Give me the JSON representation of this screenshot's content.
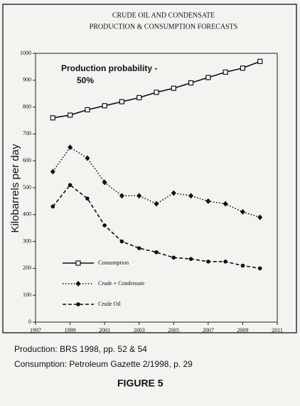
{
  "chart_data": {
    "type": "line",
    "title": [
      "CRUDE OIL AND CONDENSATE",
      "PRODUCTION & CONSUMPTION FORECASTS"
    ],
    "y_label": "Kilobarrels per day",
    "annotation": [
      "Production probability -",
      "50%"
    ],
    "x": [
      1998,
      1999,
      2000,
      2001,
      2002,
      2003,
      2004,
      2005,
      2006,
      2007,
      2008,
      2009,
      2010
    ],
    "xlim": [
      1997,
      2011
    ],
    "xticks": [
      1997,
      1999,
      2001,
      2003,
      2005,
      2007,
      2009,
      2011
    ],
    "ylim": [
      0,
      1000
    ],
    "yticks": [
      0,
      100,
      200,
      300,
      400,
      500,
      600,
      700,
      800,
      900,
      1000
    ],
    "series": [
      {
        "name": "Consumption",
        "color": "#111111",
        "line_style": "solid",
        "marker": "square",
        "values": [
          760,
          770,
          790,
          805,
          820,
          835,
          855,
          870,
          890,
          910,
          930,
          945,
          970
        ]
      },
      {
        "name": "Crude + Condensate",
        "color": "#111111",
        "line_style": "dotted",
        "marker": "diamond",
        "values": [
          560,
          650,
          610,
          520,
          470,
          470,
          440,
          480,
          470,
          450,
          440,
          410,
          390
        ]
      },
      {
        "name": "Crude Oil",
        "color": "#111111",
        "line_style": "dashed",
        "marker": "circle",
        "values": [
          430,
          510,
          460,
          360,
          300,
          275,
          260,
          240,
          235,
          225,
          225,
          210,
          200
        ]
      }
    ],
    "notes": [
      "Production: BRS 1998, pp. 52 & 54",
      "Consumption: Petroleum Gazette 2/1998, p. 29"
    ],
    "figure_label": "FIGURE 5"
  }
}
